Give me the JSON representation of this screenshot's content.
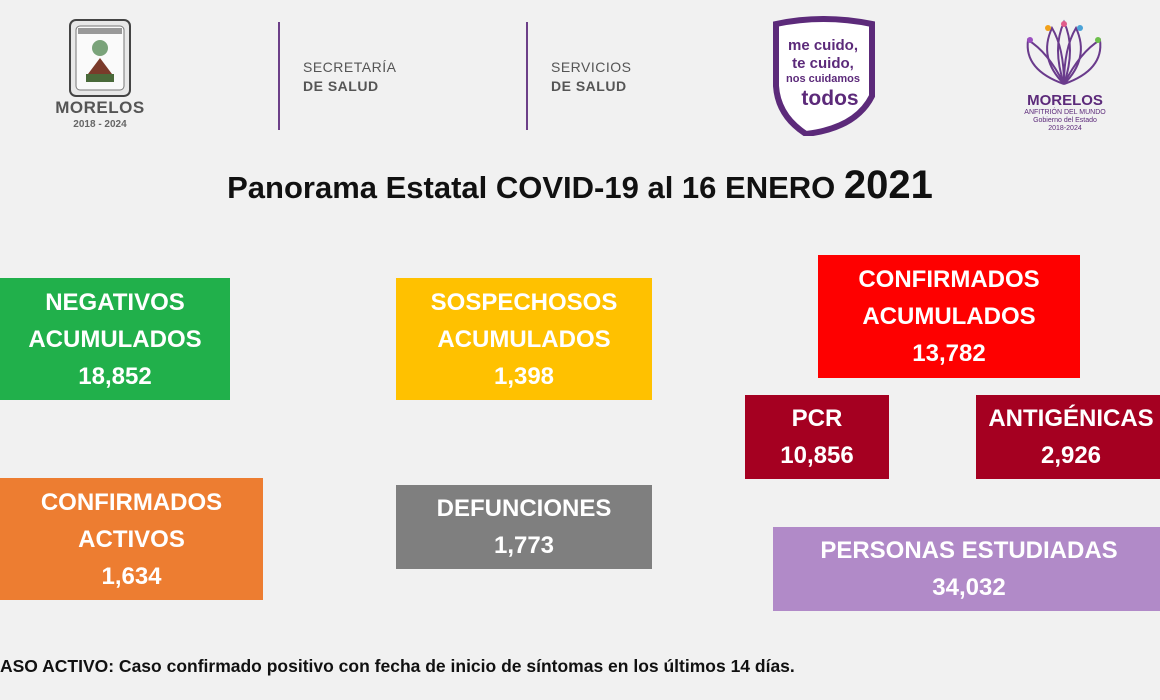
{
  "header": {
    "state_logo": {
      "name": "MORELOS",
      "years": "2018 - 2024"
    },
    "dept1": {
      "line1": "SECRETARÍA",
      "line2": "DE SALUD"
    },
    "dept2": {
      "line1": "SERVICIOS",
      "line2": "DE SALUD"
    },
    "slogan": {
      "line1": "me cuido,",
      "line2": "te cuido,",
      "line3": "nos cuidamos",
      "line4": "todos"
    },
    "brand_logo": {
      "name": "MORELOS",
      "sub1": "ANFITRIÓN DEL MUNDO",
      "sub2": "Gobierno del Estado",
      "sub3": "2018-2024"
    }
  },
  "title": {
    "main": "Panorama Estatal COVID-19 al 16 ENERO",
    "year": "2021"
  },
  "boxes": {
    "negativos": {
      "line1": "NEGATIVOS",
      "line2": "ACUMULADOS",
      "value": "18,852"
    },
    "sospechosos": {
      "line1": "SOSPECHOSOS",
      "line2": "ACUMULADOS",
      "value": "1,398"
    },
    "confirmados": {
      "line1": "CONFIRMADOS",
      "line2": "ACUMULADOS",
      "value": "13,782"
    },
    "pcr": {
      "label": "PCR",
      "value": "10,856"
    },
    "antigenicas": {
      "label": "ANTIGÉNICAS",
      "value": "2,926"
    },
    "activos": {
      "line1": "CONFIRMADOS",
      "line2": "ACTIVOS",
      "value": "1,634"
    },
    "defunciones": {
      "label": "DEFUNCIONES",
      "value": "1,773"
    },
    "personas": {
      "label": "PERSONAS ESTUDIADAS",
      "value": "34,032"
    }
  },
  "footnote": "ASO ACTIVO: Caso confirmado positivo con fecha de inicio de síntomas en los últimos 14 días.",
  "colors": {
    "green": "#21b04b",
    "yellow": "#ffc100",
    "red": "#fe0000",
    "darkred": "#a50021",
    "orange": "#ed7d31",
    "gray": "#7f7f7f",
    "lavender": "#b18ac8",
    "purple": "#5c2a7a"
  }
}
